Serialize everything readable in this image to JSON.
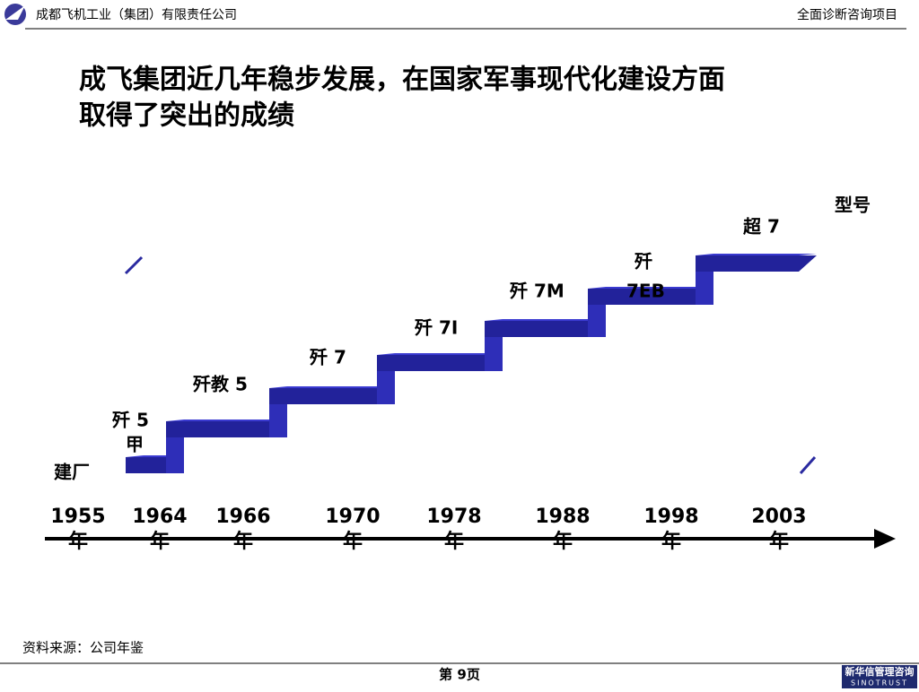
{
  "header": {
    "company": "成都飞机工业（集团）有限责任公司",
    "project": "全面诊断咨询项目"
  },
  "title_lines": [
    "成飞集团近几年稳步发展，在国家军事现代化建设方面",
    "取得了突出的成绩"
  ],
  "axis_label": "型号",
  "milestones": [
    {
      "lines": [
        "建厂"
      ]
    },
    {
      "lines": [
        "歼 5",
        "甲"
      ]
    },
    {
      "lines": [
        "歼教 5"
      ]
    },
    {
      "lines": [
        "歼 7"
      ]
    },
    {
      "lines": [
        "歼 7I"
      ]
    },
    {
      "lines": [
        "歼 7M"
      ]
    },
    {
      "lines": [
        "歼",
        "7EB"
      ]
    },
    {
      "lines": [
        "超 7"
      ]
    }
  ],
  "years": [
    {
      "year": "1955",
      "suffix": "年"
    },
    {
      "year": "1964",
      "suffix": "年"
    },
    {
      "year": "1966",
      "suffix": "年"
    },
    {
      "year": "1970",
      "suffix": "年"
    },
    {
      "year": "1978",
      "suffix": "年"
    },
    {
      "year": "1988",
      "suffix": "年"
    },
    {
      "year": "1998",
      "suffix": "年"
    },
    {
      "year": "2003",
      "suffix": "年"
    }
  ],
  "source": "资料来源：公司年鉴",
  "footer": {
    "page": "第 9页",
    "logo_cn": "新华信管理咨询",
    "logo_en": "SINOTRUST"
  }
}
